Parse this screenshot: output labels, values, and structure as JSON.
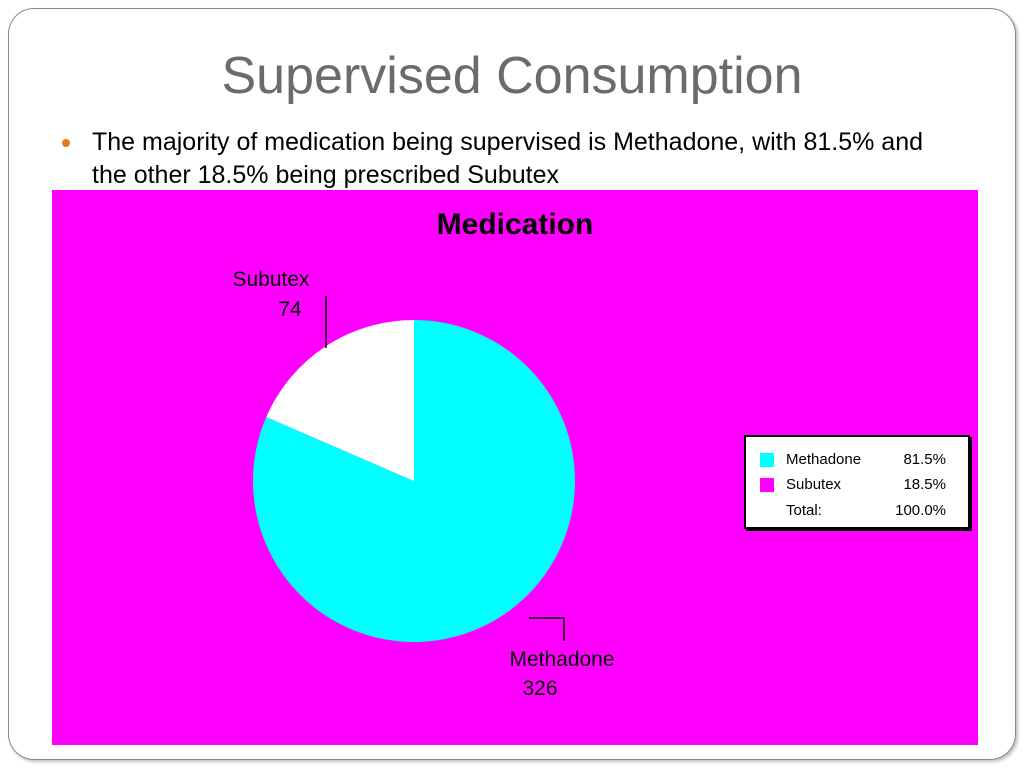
{
  "slide": {
    "title": "Supervised Consumption",
    "bullet": "The majority of medication being supervised is Methadone, with 81.5% and the other 18.5% being prescribed Subutex"
  },
  "colors": {
    "background": "#ff00ff",
    "methadone": "#00ffff",
    "subutex": "#ffffff",
    "subutex_legend": "#ff00ff",
    "bullet": "#e07b1e",
    "title": "#6b6b6b"
  },
  "chart_data": {
    "type": "pie",
    "title": "Medication",
    "slices": [
      {
        "name": "Methadone",
        "value": 326,
        "percent": "81.5%",
        "color": "#00ffff",
        "legend_color": "#00ffff"
      },
      {
        "name": "Subutex",
        "value": 74,
        "percent": "18.5%",
        "color": "#ffffff",
        "legend_color": "#ff00ff"
      }
    ],
    "legend": {
      "placement": "right",
      "total_label": "Total:",
      "total_percent": "100.0%"
    }
  }
}
